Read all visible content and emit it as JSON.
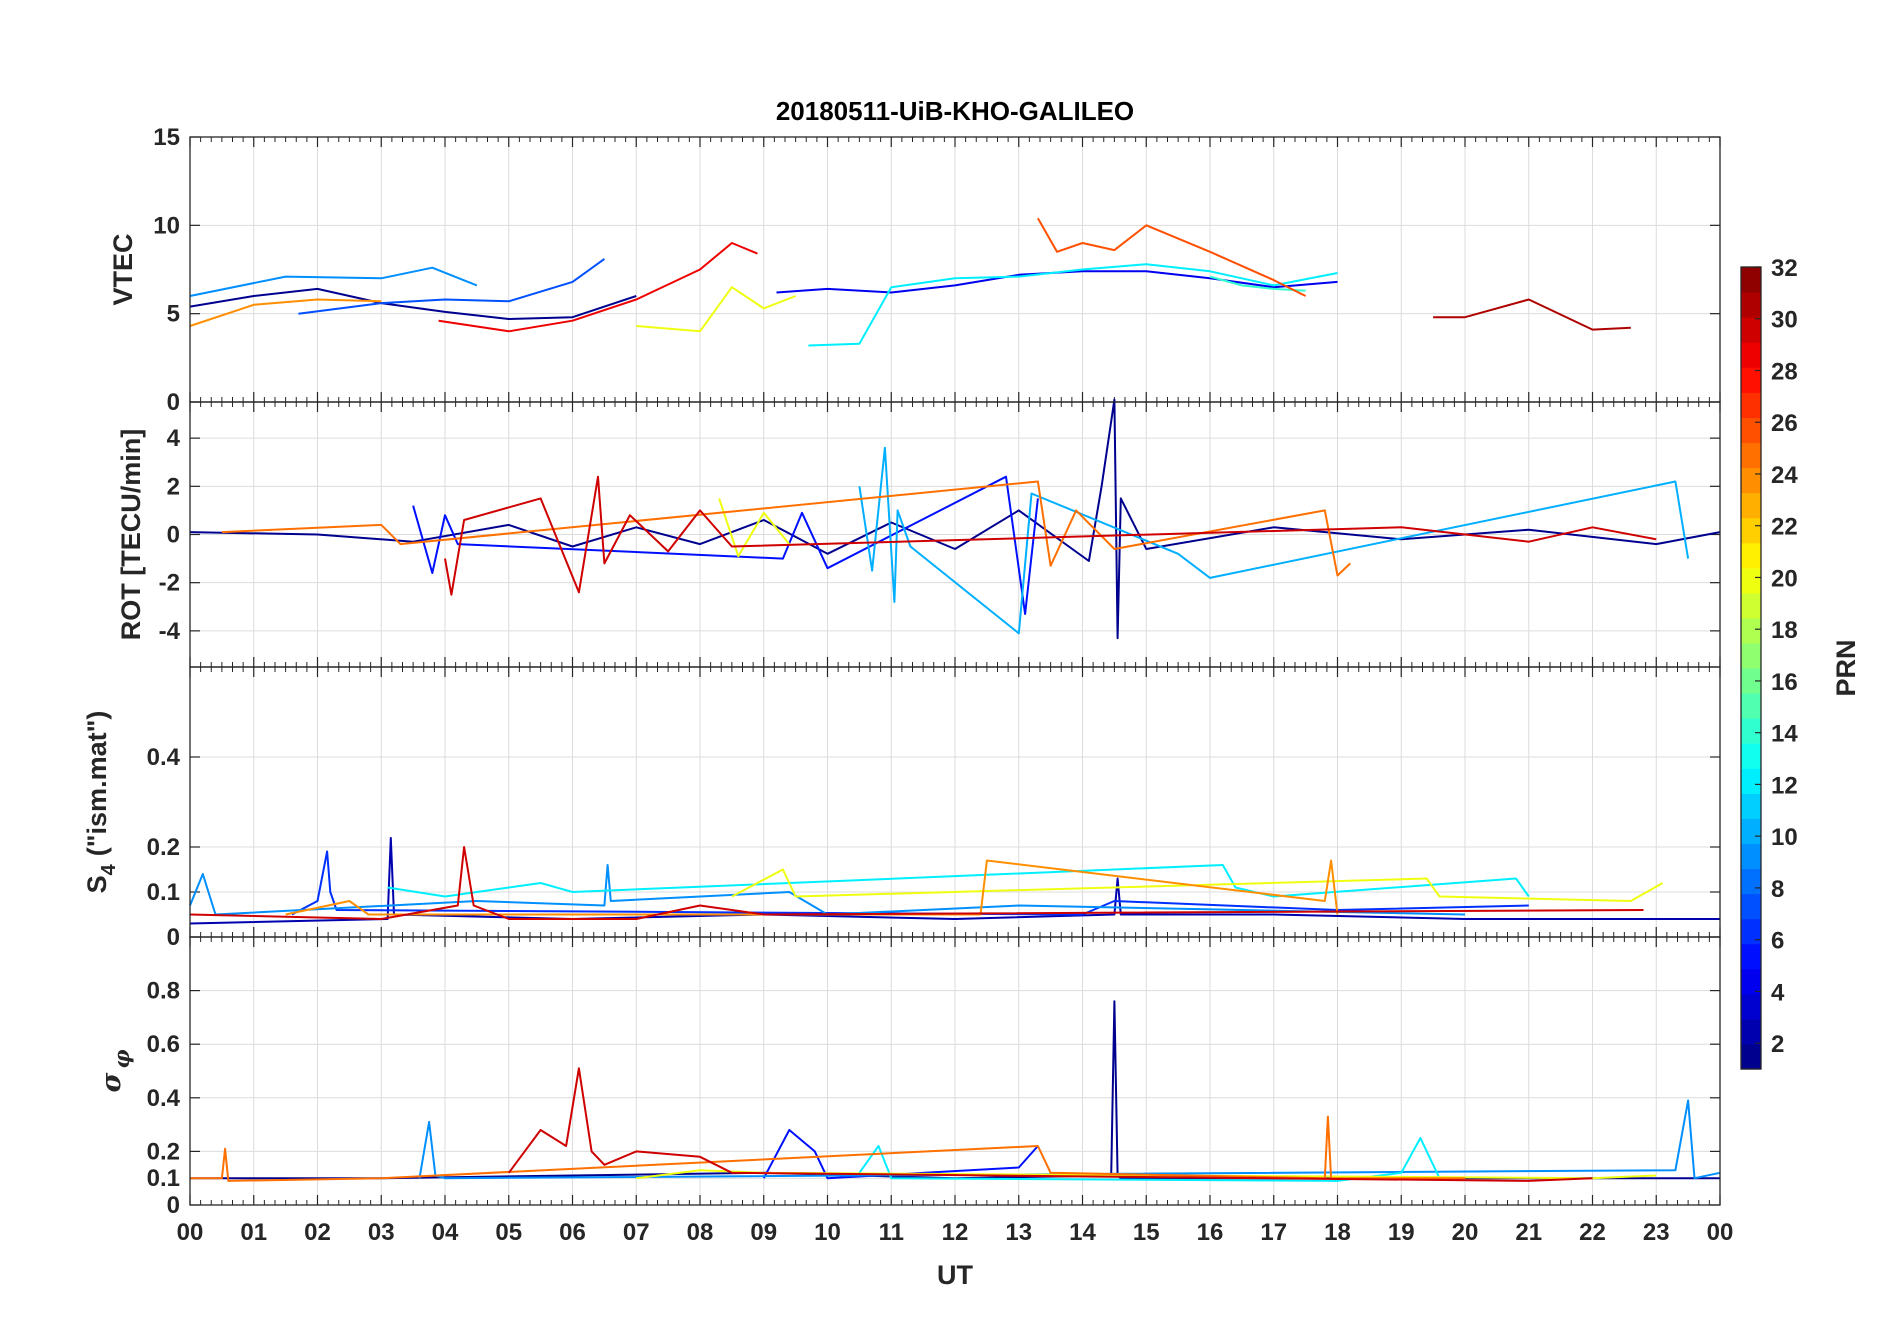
{
  "chart_data": [
    {
      "type": "line",
      "title": "20180511-UiB-KHO-GALILEO",
      "ylabel": "VTEC",
      "ylim": [
        0,
        15
      ],
      "yticks": [
        "0",
        "5",
        "10",
        "15"
      ],
      "ytick_values": [
        0,
        5,
        10,
        15
      ],
      "grid": true,
      "xlim": [
        0,
        24
      ],
      "series": [
        {
          "prn": 1,
          "x": [
            0.0,
            1.0,
            2.0,
            3.0,
            4.0,
            5.0,
            6.0,
            7.0
          ],
          "y": [
            5.4,
            6.0,
            6.4,
            5.6,
            5.1,
            4.7,
            4.8,
            6.0
          ]
        },
        {
          "prn": 4,
          "x": [
            9.2,
            10.0,
            11.0,
            12.0,
            13.0,
            14.0,
            15.0,
            16.0,
            17.0,
            18.0
          ],
          "y": [
            6.2,
            6.4,
            6.2,
            6.6,
            7.2,
            7.4,
            7.4,
            7.0,
            6.5,
            6.8
          ]
        },
        {
          "prn": 7,
          "x": [
            1.7,
            3.0,
            4.0,
            5.0,
            6.0,
            6.5
          ],
          "y": [
            5.0,
            5.6,
            5.8,
            5.7,
            6.8,
            8.1
          ]
        },
        {
          "prn": 9,
          "x": [
            0.0,
            1.5,
            3.0,
            3.8,
            4.5
          ],
          "y": [
            6.0,
            7.1,
            7.0,
            7.6,
            6.6
          ]
        },
        {
          "prn": 12,
          "x": [
            9.7,
            10.5,
            11.0,
            12.0,
            13.0,
            14.0,
            15.0,
            16.0,
            17.0,
            18.0
          ],
          "y": [
            3.2,
            3.3,
            6.5,
            7.0,
            7.1,
            7.5,
            7.8,
            7.4,
            6.6,
            7.3
          ]
        },
        {
          "prn": 14,
          "x": [
            16.0,
            16.5,
            17.0,
            17.5
          ],
          "y": [
            7.1,
            6.6,
            6.4,
            6.3
          ]
        },
        {
          "prn": 20,
          "x": [
            7.0,
            8.0,
            8.5,
            9.0,
            9.5
          ],
          "y": [
            4.3,
            4.0,
            6.5,
            5.3,
            6.0
          ]
        },
        {
          "prn": 24,
          "x": [
            0.0,
            1.0,
            2.0,
            3.0
          ],
          "y": [
            4.3,
            5.5,
            5.8,
            5.7
          ]
        },
        {
          "prn": 26,
          "x": [
            13.3,
            13.6,
            14.0,
            14.5,
            15.0,
            16.0,
            17.0,
            17.5
          ],
          "y": [
            10.4,
            8.5,
            9.0,
            8.6,
            10.0,
            8.5,
            6.9,
            6.0
          ]
        },
        {
          "prn": 29,
          "x": [
            3.9,
            5.0,
            6.0,
            7.0,
            8.0,
            8.5,
            8.9
          ],
          "y": [
            4.6,
            4.0,
            4.6,
            5.8,
            7.5,
            9.0,
            8.4
          ]
        },
        {
          "prn": 31,
          "x": [
            19.5,
            20.0,
            21.0,
            22.0,
            22.6
          ],
          "y": [
            4.8,
            4.8,
            5.8,
            4.1,
            4.2
          ]
        }
      ]
    },
    {
      "type": "line",
      "ylabel": "ROT [TECU/min]",
      "ylim": [
        -5.5,
        5.5
      ],
      "yticks": [
        "-4",
        "-2",
        "0",
        "2",
        "4"
      ],
      "ytick_values": [
        -4,
        -2,
        0,
        2,
        4
      ],
      "grid": true,
      "xlim": [
        0,
        24
      ],
      "series": [
        {
          "prn": 1,
          "x": [
            0,
            2,
            3.5,
            5,
            6,
            7,
            8,
            9,
            10,
            11,
            12,
            13,
            14.1,
            14.3,
            14.5,
            14.55,
            14.6,
            15,
            17,
            19,
            21,
            23,
            24
          ],
          "y": [
            0.1,
            0.0,
            -0.3,
            0.4,
            -0.5,
            0.3,
            -0.4,
            0.6,
            -0.8,
            0.5,
            -0.6,
            1.0,
            -1.1,
            2.0,
            5.6,
            -4.3,
            1.5,
            -0.6,
            0.3,
            -0.2,
            0.2,
            -0.4,
            0.1
          ]
        },
        {
          "prn": 5,
          "x": [
            3.5,
            3.8,
            4.0,
            4.2,
            9.3,
            9.6,
            10.0,
            12.8,
            13.1,
            13.3
          ],
          "y": [
            1.2,
            -1.6,
            0.8,
            -0.4,
            -1.0,
            0.9,
            -1.4,
            2.4,
            -3.3,
            1.5
          ]
        },
        {
          "prn": 10,
          "x": [
            10.5,
            10.7,
            10.9,
            11.05,
            11.1,
            11.3,
            13.0,
            13.2,
            15.5,
            16.0,
            23.3,
            23.5
          ],
          "y": [
            2.0,
            -1.5,
            3.6,
            -2.8,
            1.0,
            -0.5,
            -4.1,
            1.7,
            -0.8,
            -1.8,
            2.2,
            -1.0
          ]
        },
        {
          "prn": 20,
          "x": [
            8.3,
            8.6,
            9.0,
            9.4
          ],
          "y": [
            1.5,
            -0.9,
            0.9,
            -0.4
          ]
        },
        {
          "prn": 25,
          "x": [
            0.5,
            3.0,
            3.3,
            13.3,
            13.5,
            13.9,
            14.5,
            17.8,
            18.0,
            18.2
          ],
          "y": [
            0.1,
            0.4,
            -0.4,
            2.2,
            -1.3,
            1.0,
            -0.6,
            1.0,
            -1.7,
            -1.2
          ]
        },
        {
          "prn": 30,
          "x": [
            4.0,
            4.1,
            4.3,
            5.5,
            6.1,
            6.4,
            6.5,
            6.9,
            7.5,
            8.0,
            8.5,
            19.0,
            21.0,
            22.0,
            23.0
          ],
          "y": [
            -1.0,
            -2.5,
            0.6,
            1.5,
            -2.4,
            2.4,
            -1.2,
            0.8,
            -0.7,
            1.0,
            -0.5,
            0.3,
            -0.3,
            0.3,
            -0.2
          ]
        }
      ]
    },
    {
      "type": "line",
      "ylabel": "S",
      "ylabel_sub": "4",
      "ylabel_tail": "(\"ism.mat\")",
      "ylim": [
        0,
        0.6
      ],
      "yticks": [
        "0",
        "0.1",
        "0.2",
        "0.4"
      ],
      "ytick_values": [
        0,
        0.1,
        0.2,
        0.4
      ],
      "grid": true,
      "xlim": [
        0,
        24
      ],
      "series": [
        {
          "prn": 2,
          "x": [
            0,
            3.1,
            3.15,
            3.2,
            6,
            9,
            12,
            14.5,
            14.55,
            14.6,
            17,
            20,
            24
          ],
          "y": [
            0.03,
            0.04,
            0.22,
            0.05,
            0.04,
            0.05,
            0.04,
            0.05,
            0.13,
            0.05,
            0.05,
            0.04,
            0.04
          ]
        },
        {
          "prn": 6,
          "x": [
            1.6,
            2.0,
            2.15,
            2.2,
            2.3,
            14.0,
            14.5,
            18.0,
            21.0
          ],
          "y": [
            0.05,
            0.08,
            0.19,
            0.1,
            0.06,
            0.05,
            0.08,
            0.06,
            0.07
          ]
        },
        {
          "prn": 9,
          "x": [
            0,
            0.2,
            0.4,
            4.5,
            6.5,
            6.55,
            6.6,
            9.4,
            10,
            13,
            16.5,
            20
          ],
          "y": [
            0.07,
            0.14,
            0.05,
            0.08,
            0.07,
            0.16,
            0.08,
            0.1,
            0.05,
            0.07,
            0.06,
            0.05
          ]
        },
        {
          "prn": 12,
          "x": [
            3.1,
            4.0,
            5.5,
            6.0,
            16.2,
            16.4,
            17.0,
            20.8,
            21.0
          ],
          "y": [
            0.11,
            0.09,
            0.12,
            0.1,
            0.16,
            0.11,
            0.09,
            0.13,
            0.09
          ]
        },
        {
          "prn": 20,
          "x": [
            8.5,
            9.3,
            9.5,
            19.4,
            19.6,
            22.6,
            23.1
          ],
          "y": [
            0.09,
            0.15,
            0.09,
            0.13,
            0.09,
            0.08,
            0.12
          ]
        },
        {
          "prn": 24,
          "x": [
            1.5,
            2.5,
            2.8,
            12.4,
            12.5,
            17.8,
            17.9,
            18.0
          ],
          "y": [
            0.05,
            0.08,
            0.05,
            0.05,
            0.17,
            0.08,
            0.17,
            0.05
          ]
        },
        {
          "prn": 30,
          "x": [
            0,
            3.0,
            4.2,
            4.3,
            4.45,
            5.0,
            7.0,
            8.0,
            9.0,
            22.8
          ],
          "y": [
            0.05,
            0.04,
            0.07,
            0.2,
            0.07,
            0.04,
            0.04,
            0.07,
            0.05,
            0.06
          ]
        }
      ]
    },
    {
      "type": "line",
      "ylabel": "σ",
      "ylabel_sub": "φ",
      "ylim": [
        0,
        1
      ],
      "yticks": [
        "0",
        "0.1",
        "0.2",
        "0.4",
        "0.6",
        "0.8"
      ],
      "ytick_values": [
        0,
        0.1,
        0.2,
        0.4,
        0.6,
        0.8
      ],
      "grid": true,
      "xlim": [
        0,
        24
      ],
      "xlabel": "UT",
      "xticks": [
        "00",
        "01",
        "02",
        "03",
        "04",
        "05",
        "06",
        "07",
        "08",
        "09",
        "10",
        "11",
        "12",
        "13",
        "14",
        "15",
        "16",
        "17",
        "18",
        "19",
        "20",
        "21",
        "22",
        "23",
        "00"
      ],
      "series": [
        {
          "prn": 1,
          "x": [
            0,
            3,
            6,
            9,
            12,
            14.45,
            14.5,
            14.55,
            14.6,
            17,
            20,
            24
          ],
          "y": [
            0.1,
            0.1,
            0.11,
            0.12,
            0.1,
            0.11,
            0.76,
            0.11,
            0.1,
            0.1,
            0.1,
            0.1
          ]
        },
        {
          "prn": 5,
          "x": [
            9.0,
            9.4,
            9.8,
            10.0,
            13.0,
            13.3
          ],
          "y": [
            0.1,
            0.28,
            0.2,
            0.1,
            0.14,
            0.22
          ]
        },
        {
          "prn": 9,
          "x": [
            3.6,
            3.75,
            3.85,
            4.0,
            23.3,
            23.5,
            23.6,
            24
          ],
          "y": [
            0.1,
            0.31,
            0.11,
            0.1,
            0.13,
            0.39,
            0.1,
            0.12
          ]
        },
        {
          "prn": 12,
          "x": [
            10.5,
            10.8,
            11.0,
            18.0,
            19.0,
            19.3,
            19.6
          ],
          "y": [
            0.12,
            0.22,
            0.1,
            0.09,
            0.12,
            0.25,
            0.1
          ]
        },
        {
          "prn": 20,
          "x": [
            7.0,
            8.0,
            9.0,
            22.0,
            23.0
          ],
          "y": [
            0.1,
            0.13,
            0.12,
            0.1,
            0.11
          ]
        },
        {
          "prn": 25,
          "x": [
            0,
            0.5,
            0.55,
            0.6,
            3.0,
            13.3,
            13.5,
            17.8,
            17.85,
            17.9,
            20
          ],
          "y": [
            0.1,
            0.1,
            0.21,
            0.09,
            0.1,
            0.22,
            0.12,
            0.1,
            0.33,
            0.1,
            0.1
          ]
        },
        {
          "prn": 30,
          "x": [
            5.0,
            5.5,
            5.9,
            6.1,
            6.3,
            6.5,
            7.0,
            8.0,
            8.5,
            21.0,
            22.0
          ],
          "y": [
            0.12,
            0.28,
            0.22,
            0.51,
            0.2,
            0.15,
            0.2,
            0.18,
            0.12,
            0.09,
            0.1
          ]
        }
      ]
    },
    {
      "type": "heatmap",
      "ylabel": "PRN",
      "clim": [
        1,
        32
      ],
      "ticks": [
        "2",
        "4",
        "6",
        "8",
        "10",
        "12",
        "14",
        "16",
        "18",
        "20",
        "22",
        "24",
        "26",
        "28",
        "30",
        "32"
      ],
      "tick_values": [
        2,
        4,
        6,
        8,
        10,
        12,
        14,
        16,
        18,
        20,
        22,
        24,
        26,
        28,
        30,
        32
      ],
      "colormap": "jet",
      "levels": 32
    }
  ]
}
